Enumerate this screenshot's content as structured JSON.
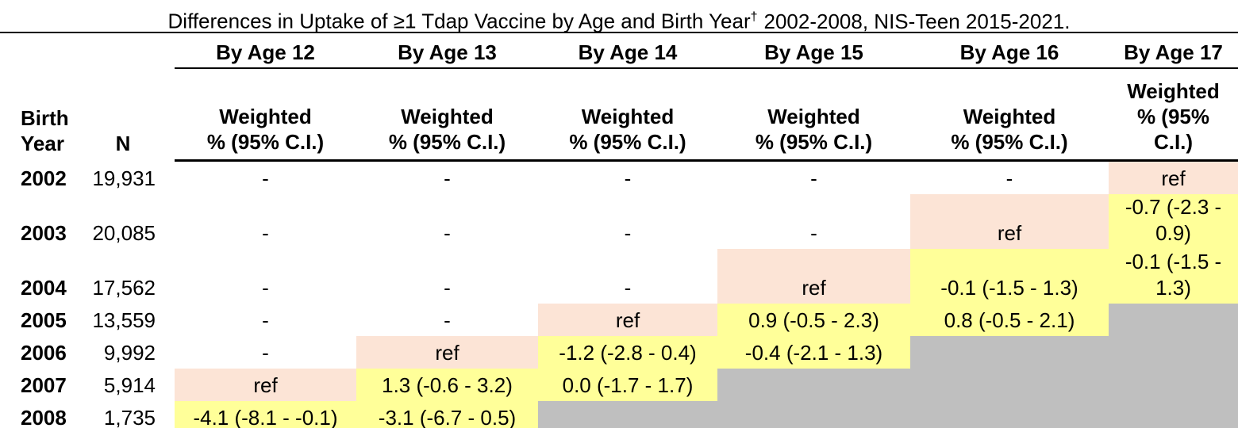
{
  "title": {
    "part1": "Differences in Uptake of ≥1 Tdap Vaccine by Age and Birth Year",
    "dagger": "†",
    "part2": "2002-2008, NIS-Teen 2015-2021."
  },
  "table": {
    "col_headers": [
      "By Age 12",
      "By Age 13",
      "By Age 14",
      "By Age 15",
      "By Age 16",
      "By Age 17"
    ],
    "row_label_lines": [
      "Birth",
      "Year"
    ],
    "n_label": "N",
    "subheader_text": "Weighted % (95% C.I.)",
    "subheader_lines_wide": [
      "Weighted",
      "% (95% C.I.)"
    ],
    "subheader_lines_narrow": [
      "Weighted",
      "% (95%",
      "C.I.)"
    ],
    "rows": [
      {
        "year": "2002",
        "n": "19,931",
        "cells": [
          {
            "t": "-"
          },
          {
            "t": "-"
          },
          {
            "t": "-"
          },
          {
            "t": "-"
          },
          {
            "t": "-"
          },
          {
            "t": "ref",
            "bg": "ref"
          }
        ]
      },
      {
        "year": "2003",
        "n": "20,085",
        "cells": [
          {
            "t": "-"
          },
          {
            "t": "-"
          },
          {
            "t": "-"
          },
          {
            "t": "-"
          },
          {
            "t": "ref",
            "bg": "ref"
          },
          {
            "t": "-0.7 (-2.3 - 0.9)",
            "bg": "val"
          }
        ]
      },
      {
        "year": "2004",
        "n": "17,562",
        "cells": [
          {
            "t": "-"
          },
          {
            "t": "-"
          },
          {
            "t": "-"
          },
          {
            "t": "ref",
            "bg": "ref"
          },
          {
            "t": "-0.1 (-1.5 - 1.3)",
            "bg": "val"
          },
          {
            "t": "-0.1 (-1.5 - 1.3)",
            "bg": "val"
          }
        ]
      },
      {
        "year": "2005",
        "n": "13,559",
        "cells": [
          {
            "t": "-"
          },
          {
            "t": "-"
          },
          {
            "t": "ref",
            "bg": "ref"
          },
          {
            "t": "0.9 (-0.5 - 2.3)",
            "bg": "val"
          },
          {
            "t": "0.8 (-0.5 - 2.1)",
            "bg": "val"
          },
          {
            "t": "",
            "bg": "na"
          }
        ]
      },
      {
        "year": "2006",
        "n": "9,992",
        "cells": [
          {
            "t": "-"
          },
          {
            "t": "ref",
            "bg": "ref"
          },
          {
            "t": "-1.2 (-2.8 - 0.4)",
            "bg": "val"
          },
          {
            "t": "-0.4 (-2.1 - 1.3)",
            "bg": "val"
          },
          {
            "t": "",
            "bg": "na"
          },
          {
            "t": "",
            "bg": "na"
          }
        ]
      },
      {
        "year": "2007",
        "n": "5,914",
        "cells": [
          {
            "t": "ref",
            "bg": "ref"
          },
          {
            "t": "1.3 (-0.6 - 3.2)",
            "bg": "val"
          },
          {
            "t": "0.0 (-1.7 - 1.7)",
            "bg": "val"
          },
          {
            "t": "",
            "bg": "na"
          },
          {
            "t": "",
            "bg": "na"
          },
          {
            "t": "",
            "bg": "na"
          }
        ]
      },
      {
        "year": "2008",
        "n": "1,735",
        "cells": [
          {
            "t": "-4.1 (-8.1 - -0.1)",
            "bg": "val"
          },
          {
            "t": "-3.1 (-6.7 - 0.5)",
            "bg": "val"
          },
          {
            "t": "",
            "bg": "na"
          },
          {
            "t": "",
            "bg": "na"
          },
          {
            "t": "",
            "bg": "na"
          },
          {
            "t": "",
            "bg": "na"
          }
        ]
      }
    ]
  },
  "colors": {
    "ref_bg": "#FCE4D6",
    "val_bg": "#FFFF99",
    "na_bg": "#BFBFBF",
    "rule": "#000000"
  }
}
